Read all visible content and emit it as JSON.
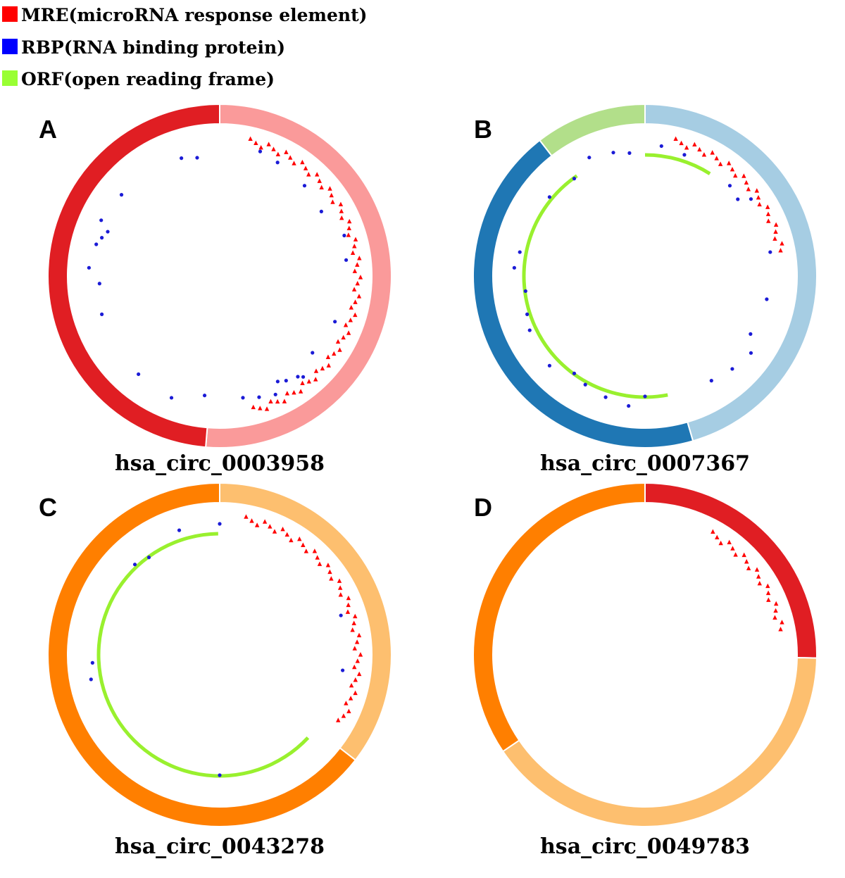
{
  "legend": {
    "items": [
      {
        "label": "MRE(microRNA response element)",
        "color": "#ff0000"
      },
      {
        "label": "RBP(RNA binding protein)",
        "color": "#0000ff"
      },
      {
        "label": "ORF(open reading frame)",
        "color": "#99ff33"
      }
    ]
  },
  "colors": {
    "mre": "#ff0000",
    "rbp": "#1b1bd6",
    "orf": "#99f02e"
  },
  "panels": [
    {
      "letter": "A",
      "name": "hsa_circ_0003958",
      "exons": [
        {
          "start": 0,
          "end": 0.513,
          "color": "#fa9a9a"
        },
        {
          "start": 0.513,
          "end": 1.0,
          "color": "#e01e23"
        }
      ],
      "orf": [],
      "mre_range": [
        0.035,
        0.46
      ],
      "rbp": [
        0.05,
        0.075,
        0.12,
        0.16,
        0.2,
        0.23,
        0.31,
        0.36,
        0.39,
        0.395,
        0.41,
        0.42,
        0.43,
        0.45,
        0.47,
        0.52,
        0.56,
        0.61,
        0.7,
        0.74,
        0.76,
        0.79,
        0.8,
        0.81,
        0.82,
        0.86,
        0.95,
        0.97
      ]
    },
    {
      "letter": "B",
      "name": "hsa_circ_0007367",
      "exons": [
        {
          "start": 0,
          "end": 0.455,
          "color": "#a6cde3"
        },
        {
          "start": 0.455,
          "end": 0.895,
          "color": "#1f77b4"
        },
        {
          "start": 0.895,
          "end": 1.0,
          "color": "#b2df8a"
        }
      ],
      "orf": [
        {
          "start": 0.0,
          "end": 0.09
        },
        {
          "start": 0.47,
          "end": 0.905
        }
      ],
      "mre_range": [
        0.035,
        0.22
      ],
      "rbp": [
        0.02,
        0.05,
        0.12,
        0.14,
        0.15,
        0.22,
        0.28,
        0.33,
        0.35,
        0.38,
        0.41,
        0.5,
        0.52,
        0.55,
        0.58,
        0.6,
        0.63,
        0.68,
        0.7,
        0.73,
        0.76,
        0.78,
        0.86,
        0.9,
        0.93,
        0.96,
        0.98
      ]
    },
    {
      "letter": "C",
      "name": "hsa_circ_0043278",
      "exons": [
        {
          "start": 0,
          "end": 0.355,
          "color": "#fdbf6f"
        },
        {
          "start": 0.355,
          "end": 1.0,
          "color": "#ff7f00"
        }
      ],
      "orf": [
        {
          "start": 0.37,
          "end": 0.998
        }
      ],
      "mre_range": [
        0.03,
        0.33
      ],
      "rbp": [
        0.0,
        0.2,
        0.27,
        0.5,
        0.72,
        0.74,
        0.88,
        0.9,
        0.95
      ]
    },
    {
      "letter": "D",
      "name": "hsa_circ_0049783",
      "exons": [
        {
          "start": 0,
          "end": 0.253,
          "color": "#e01e23"
        },
        {
          "start": 0.253,
          "end": 0.655,
          "color": "#fdbf6f"
        },
        {
          "start": 0.655,
          "end": 1.0,
          "color": "#ff7f00"
        }
      ],
      "orf": [],
      "mre_range": [
        0.08,
        0.22
      ],
      "rbp": []
    }
  ]
}
